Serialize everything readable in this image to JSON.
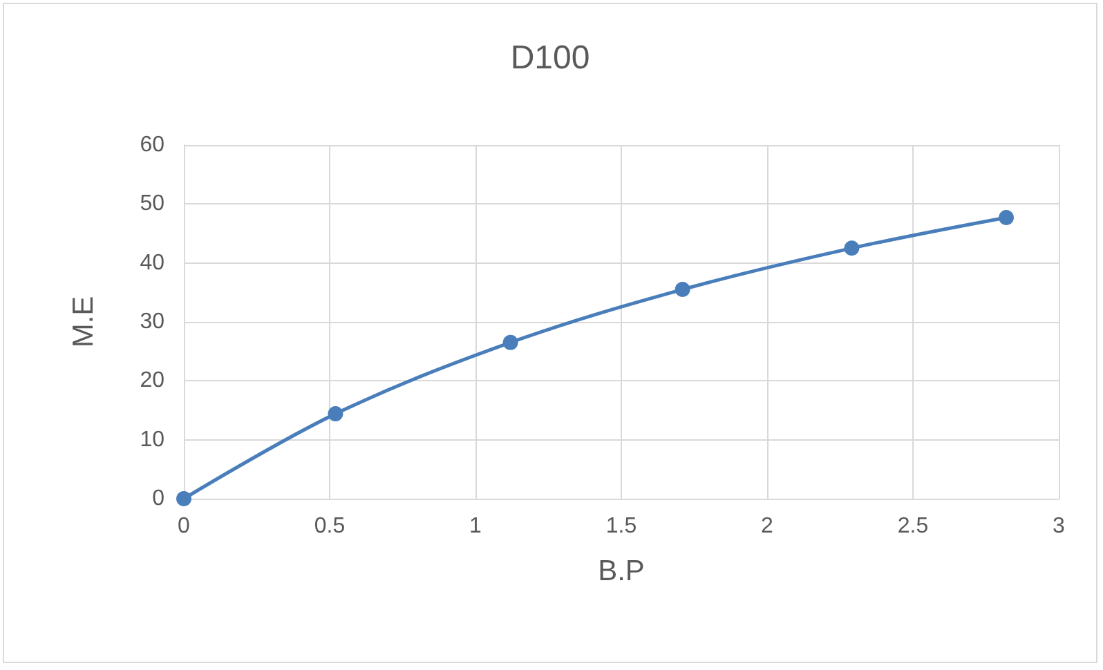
{
  "chart_data": {
    "type": "line",
    "title": "D100",
    "xlabel": "B.P",
    "ylabel": "M.E",
    "x": [
      0,
      0.52,
      1.12,
      1.71,
      2.29,
      2.82
    ],
    "series": [
      {
        "color": "#4a7ebb",
        "values": [
          0,
          14.4,
          26.5,
          35.5,
          42.5,
          47.7
        ]
      }
    ],
    "xlim": [
      0,
      3
    ],
    "xticks": [
      0,
      0.5,
      1,
      1.5,
      2,
      2.5,
      3
    ],
    "ylim": [
      0,
      60
    ],
    "yticks": [
      0,
      10,
      20,
      30,
      40,
      50,
      60
    ],
    "grid": true,
    "marker": "circle",
    "line_style": "solid"
  }
}
